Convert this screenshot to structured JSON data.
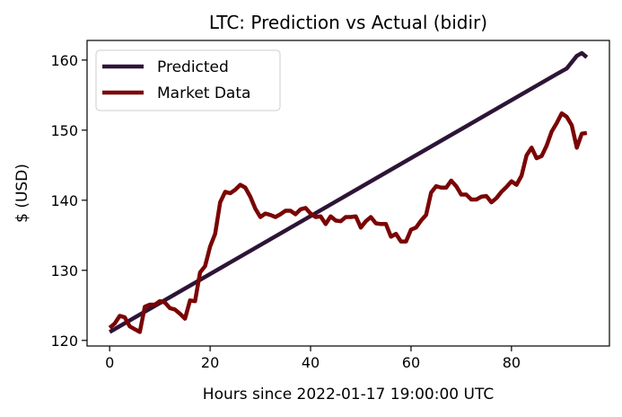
{
  "chart_data": {
    "type": "line",
    "title": "LTC: Prediction vs Actual (bidir)",
    "xlabel": "Hours since 2022-01-17 19:00:00 UTC",
    "ylabel": "$ (USD)",
    "xlim": [
      -4.5,
      99.5
    ],
    "ylim": [
      119.2,
      162.8
    ],
    "xticks": [
      0,
      20,
      40,
      60,
      80
    ],
    "yticks": [
      120,
      130,
      140,
      150,
      160
    ],
    "legend_position": "top-left",
    "grid": false,
    "series": [
      {
        "name": "Predicted",
        "color": "#2e1437",
        "x": [
          0,
          89,
          91,
          93,
          94,
          95
        ],
        "y": [
          121.2,
          158.0,
          158.8,
          160.6,
          161.0,
          160.4
        ]
      },
      {
        "name": "Market Data",
        "color": "#7a0404",
        "x": [
          0,
          1,
          2,
          3,
          4,
          5,
          6,
          7,
          8,
          9,
          10,
          11,
          12,
          13,
          14,
          15,
          16,
          17,
          18,
          19,
          20,
          21,
          22,
          23,
          24,
          25,
          26,
          27,
          28,
          29,
          30,
          31,
          32,
          33,
          34,
          35,
          36,
          37,
          38,
          39,
          40,
          41,
          42,
          43,
          44,
          45,
          46,
          47,
          48,
          49,
          50,
          51,
          52,
          53,
          54,
          55,
          56,
          57,
          58,
          59,
          60,
          61,
          62,
          63,
          64,
          65,
          66,
          67,
          68,
          69,
          70,
          71,
          72,
          73,
          74,
          75,
          76,
          77,
          78,
          79,
          80,
          81,
          82,
          83,
          84,
          85,
          86,
          87,
          88,
          89,
          90,
          91,
          92,
          93,
          94,
          95
        ],
        "y": [
          121.8,
          122.4,
          123.5,
          123.3,
          122.0,
          121.6,
          121.2,
          124.8,
          125.1,
          125.1,
          125.6,
          125.4,
          124.6,
          124.4,
          123.8,
          123.1,
          125.7,
          125.6,
          129.7,
          130.6,
          133.4,
          135.2,
          139.7,
          141.2,
          141.0,
          141.5,
          142.2,
          141.8,
          140.5,
          138.8,
          137.6,
          138.1,
          137.9,
          137.6,
          138.0,
          138.5,
          138.5,
          138.0,
          138.7,
          138.9,
          138.1,
          137.6,
          137.7,
          136.6,
          137.7,
          137.1,
          137.0,
          137.6,
          137.6,
          137.7,
          136.1,
          137.0,
          137.6,
          136.7,
          136.6,
          136.6,
          134.8,
          135.2,
          134.1,
          134.1,
          135.8,
          136.1,
          137.1,
          137.9,
          141.1,
          142.0,
          141.8,
          141.8,
          142.8,
          142.0,
          140.8,
          140.8,
          140.1,
          140.1,
          140.5,
          140.6,
          139.7,
          140.3,
          141.2,
          141.9,
          142.7,
          142.2,
          143.5,
          146.4,
          147.5,
          146.0,
          146.3,
          147.8,
          149.8,
          151.0,
          152.4,
          151.9,
          150.7,
          147.5,
          149.5,
          149.6
        ]
      }
    ]
  }
}
